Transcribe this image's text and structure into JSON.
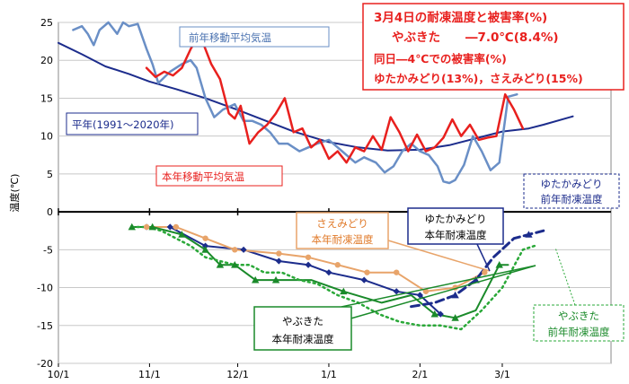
{
  "chart_data": {
    "type": "line",
    "ylabel": "温度(℃)",
    "ylim": [
      -20,
      25
    ],
    "yticks": [
      25,
      20,
      15,
      10,
      5,
      0,
      -5,
      -10,
      -15,
      -20
    ],
    "xlim_days": [
      0,
      188
    ],
    "xticks": [
      {
        "label": "10/1",
        "day": 0
      },
      {
        "label": "11/1",
        "day": 31
      },
      {
        "label": "12/1",
        "day": 61
      },
      {
        "label": "1/1",
        "day": 92
      },
      {
        "label": "2/1",
        "day": 123
      },
      {
        "label": "3/1",
        "day": 151
      }
    ],
    "series": [
      {
        "name": "平年(1991～2020年)",
        "color": "#1c2c8c",
        "style": "solid",
        "width": 2,
        "x": [
          0,
          8,
          16,
          24,
          31,
          40,
          50,
          60,
          70,
          80,
          92,
          102,
          112,
          123,
          133,
          143,
          151,
          160,
          165,
          175
        ],
        "y": [
          22.3,
          20.8,
          19.2,
          18.2,
          17.2,
          16.2,
          15.0,
          13.6,
          12.1,
          10.6,
          9.2,
          8.5,
          8.1,
          8.2,
          8.8,
          9.8,
          10.6,
          11.0,
          11.5,
          12.6
        ]
      },
      {
        "name": "前年移動平均気温",
        "color": "#6a8fc6",
        "style": "solid",
        "width": 2.5,
        "x": [
          5,
          8,
          10,
          12,
          14,
          17,
          20,
          22,
          24,
          27,
          30,
          32,
          34,
          38,
          42,
          45,
          47,
          50,
          53,
          56,
          60,
          63,
          66,
          69,
          72,
          75,
          78,
          82,
          85,
          88,
          92,
          95,
          98,
          101,
          104,
          108,
          111,
          114,
          117,
          120,
          123,
          126,
          129,
          131,
          133,
          135,
          138,
          141,
          144,
          147,
          150,
          153,
          156
        ],
        "y": [
          24,
          24.5,
          23.5,
          22,
          24,
          25,
          23.5,
          25,
          24.5,
          24.8,
          21.5,
          19.5,
          17,
          18.5,
          19.5,
          20,
          19,
          15,
          12.5,
          13.5,
          14.2,
          12,
          12,
          11.5,
          10.5,
          9,
          9,
          8,
          8.5,
          9,
          9.5,
          8.5,
          7.5,
          6.5,
          7.2,
          6.5,
          5.2,
          6,
          8,
          9,
          8,
          7.5,
          6,
          4,
          3.8,
          4.2,
          6.2,
          10,
          8,
          5.5,
          6.5,
          15.2,
          15.5
        ]
      },
      {
        "name": "本年移動平均気温",
        "color": "#e8201e",
        "style": "solid",
        "width": 2.5,
        "x": [
          30,
          33,
          36,
          39,
          42,
          45,
          48,
          52,
          55,
          58,
          60,
          62,
          65,
          68,
          71,
          74,
          77,
          80,
          83,
          86,
          89,
          92,
          95,
          98,
          101,
          104,
          107,
          110,
          113,
          116,
          119,
          122,
          125,
          128,
          131,
          134,
          137,
          140,
          143,
          146,
          149,
          152,
          155,
          158
        ],
        "y": [
          19,
          17.8,
          18.5,
          18,
          19,
          21.5,
          23.5,
          19.5,
          17.5,
          13,
          12.3,
          14,
          9,
          10.5,
          11.5,
          13,
          15,
          10.5,
          11,
          8.5,
          9.5,
          7,
          8,
          6.5,
          8.5,
          8,
          10,
          8.2,
          12.5,
          10.5,
          8,
          10.2,
          8,
          8.5,
          9.8,
          12.2,
          10,
          11.5,
          9.5,
          9.8,
          10,
          15.5,
          13.5,
          11
        ]
      },
      {
        "name": "ゆたかみどり本年耐凍温度",
        "color": "#1c2c8c",
        "style": "solid",
        "width": 2,
        "x": [
          30,
          38,
          50,
          63,
          75,
          85,
          92,
          104,
          115,
          123,
          130
        ],
        "y": [
          -2,
          -2,
          -4.5,
          -5,
          -6.5,
          -7,
          -8,
          -9,
          -10.5,
          -11,
          -13.5
        ]
      },
      {
        "name": "さえみどり本年耐凍温度",
        "color": "#e8a46a",
        "style": "solid",
        "width": 2,
        "x": [
          30,
          40,
          50,
          60,
          75,
          85,
          95,
          105,
          115,
          125,
          135,
          145
        ],
        "y": [
          -2,
          -2,
          -3.5,
          -5,
          -5.5,
          -6,
          -7,
          -8,
          -8,
          -10.5,
          -10,
          -8
        ]
      },
      {
        "name": "やぶきた本年耐凍温度",
        "color": "#1a8a2a",
        "style": "solid",
        "width": 2,
        "x": [
          25,
          32,
          42,
          50,
          55,
          60,
          67,
          74,
          86,
          97,
          110,
          120,
          128,
          135,
          142,
          150,
          153
        ],
        "y": [
          -2,
          -2,
          -3,
          -5,
          -7,
          -7,
          -9,
          -9,
          -9,
          -10.5,
          -12,
          -11,
          -13.5,
          -14,
          -13,
          -7,
          -7
        ]
      },
      {
        "name": "ゆたかみどり前年耐凍温度",
        "color": "#1c2c8c",
        "style": "dashed",
        "width": 3,
        "x": [
          120,
          128,
          135,
          142,
          148,
          155,
          160,
          165
        ],
        "y": [
          -12.5,
          -12,
          -11,
          -9,
          -6,
          -3.5,
          -3,
          -2.5
        ]
      },
      {
        "name": "やぶきた前年耐凍温度",
        "color": "#2aa838",
        "style": "dotted",
        "width": 2.5,
        "x": [
          25,
          30,
          35,
          40,
          45,
          50,
          55,
          60,
          65,
          70,
          76,
          82,
          88,
          95,
          102,
          109,
          116,
          123,
          130,
          137,
          144,
          151,
          158,
          162
        ],
        "y": [
          -2,
          -2,
          -2.5,
          -3.5,
          -4.5,
          -6,
          -6.5,
          -7,
          -7,
          -8,
          -8,
          -9,
          -9.5,
          -11,
          -12,
          -13.5,
          -14.5,
          -15,
          -15,
          -15.5,
          -13,
          -10,
          -5,
          -4.5
        ]
      }
    ],
    "markers": [
      {
        "series": 3,
        "shape": "diamond",
        "x": [
          30,
          38,
          50,
          63,
          75,
          85,
          92,
          104,
          115,
          123,
          130
        ]
      },
      {
        "series": 4,
        "shape": "circle",
        "x": [
          30,
          40,
          50,
          60,
          75,
          85,
          95,
          105,
          115,
          125,
          135,
          145
        ]
      },
      {
        "series": 5,
        "shape": "triangle",
        "x": [
          25,
          32,
          42,
          50,
          55,
          60,
          67,
          74,
          97,
          128,
          135,
          150
        ]
      },
      {
        "series": 6,
        "shape": "triangle",
        "x": [
          125,
          135,
          142,
          150,
          160
        ]
      }
    ],
    "legend": []
  },
  "labels": {
    "heiNen": "平年(1991～2020年)",
    "zenNenIdou": "前年移動平均気温",
    "honNenIdou": "本年移動平均気温",
    "sae1": "さえみどり",
    "sae2": "本年耐凍温度",
    "yuta1": "ゆたかみどり",
    "yuta2": "本年耐凍温度",
    "yutaPrev1": "ゆたかみどり",
    "yutaPrev2": "前年耐凍温度",
    "yabu1": "やぶきた",
    "yabu2": "本年耐凍温度",
    "yabuPrev1": "やぶきた",
    "yabuPrev2": "前年耐凍温度"
  },
  "info_box": {
    "line1": "3月4日の耐凍温度と被害率(%)",
    "line2a": "やぶきた",
    "line2b": "―7.0℃(8.4%)",
    "line3": "同日―4℃での被害率(%)",
    "line4": "ゆたかみどり(13%)，さえみどり(15%)"
  }
}
